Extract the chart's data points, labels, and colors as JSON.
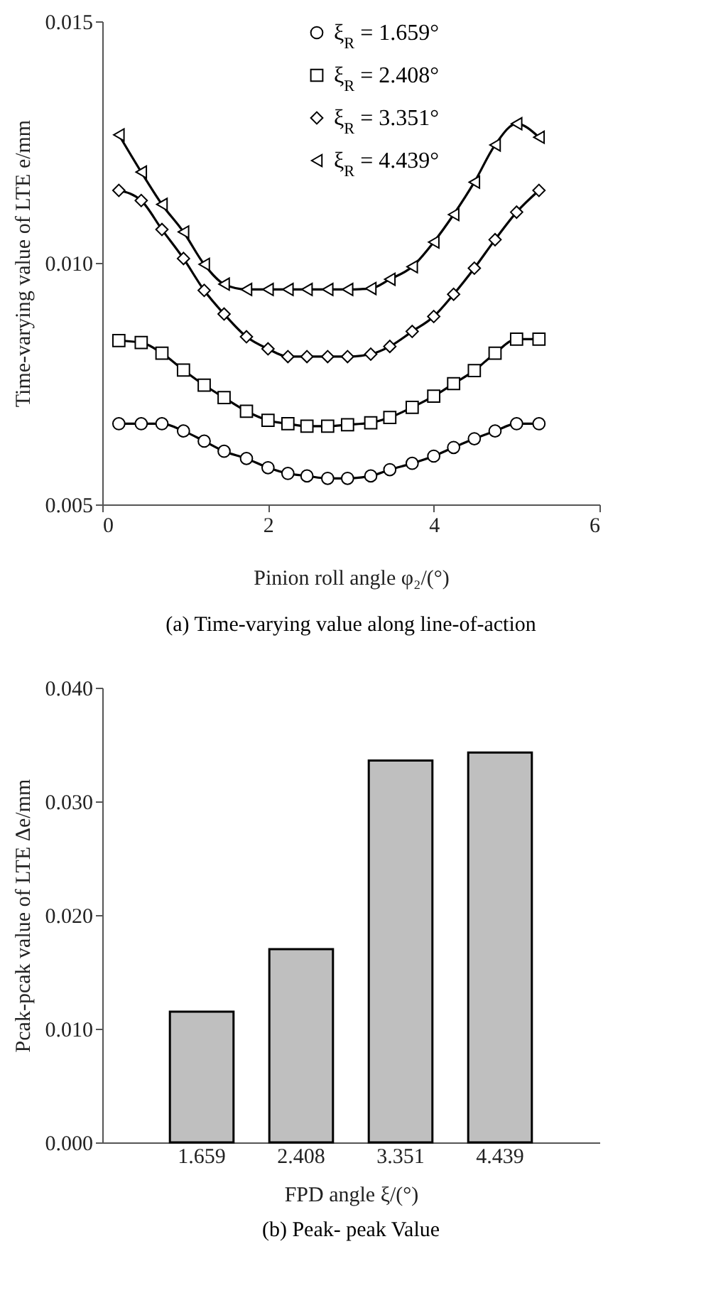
{
  "chart_data": [
    {
      "type": "line",
      "title": "(a) Time-varying value along line-of-action",
      "xlabel": "Pinion roll angle  φ₂/(°)",
      "ylabel": "Time-varying value of LTE  e/mm",
      "x": [
        0.2,
        0.47,
        0.72,
        0.98,
        1.23,
        1.47,
        1.74,
        2.0,
        2.24,
        2.47,
        2.72,
        2.96,
        3.24,
        3.47,
        3.74,
        4.0,
        4.24,
        4.49,
        4.74,
        5.0,
        5.27
      ],
      "xlim": [
        0,
        6
      ],
      "xticks": [
        0,
        2,
        4,
        6
      ],
      "ylim": [
        0.005,
        0.015
      ],
      "yticks": [
        0.015,
        {
          "value": 0.01,
          "label": "0.010"
        },
        0.005
      ],
      "legend": "top",
      "grid": false,
      "line_style": "solid",
      "series": [
        {
          "name": "ξ$_{R}$ = 1.659°",
          "color": "#000000",
          "marker": "circle",
          "values": [
            0.00667,
            0.00667,
            0.00667,
            0.00652,
            0.00631,
            0.0061,
            0.00595,
            0.00576,
            0.00564,
            0.00559,
            0.00554,
            0.00554,
            0.00559,
            0.00572,
            0.00585,
            0.006,
            0.00618,
            0.00636,
            0.00652,
            0.00667,
            0.00667
          ]
        },
        {
          "name": "ξ$_{R}$ = 2.408°",
          "color": "#000000",
          "marker": "square",
          "values": [
            0.00839,
            0.00835,
            0.00813,
            0.00778,
            0.00747,
            0.00721,
            0.00693,
            0.00674,
            0.00667,
            0.00662,
            0.00662,
            0.00665,
            0.00669,
            0.0068,
            0.00701,
            0.00724,
            0.0075,
            0.00777,
            0.00813,
            0.00842,
            0.00842
          ]
        },
        {
          "name": "ξ$_{R}$ = 3.351°",
          "color": "#000000",
          "marker": "diamond",
          "values": [
            0.0115,
            0.01129,
            0.01069,
            0.01009,
            0.00943,
            0.00894,
            0.00847,
            0.00822,
            0.00806,
            0.00806,
            0.00806,
            0.00806,
            0.00811,
            0.00827,
            0.00858,
            0.00889,
            0.00935,
            0.00989,
            0.01048,
            0.01105,
            0.0115
          ]
        },
        {
          "name": "ξ$_{R}$ = 4.439°",
          "color": "#000000",
          "marker": "triangle-left",
          "values": [
            0.01265,
            0.01188,
            0.01121,
            0.01064,
            0.00997,
            0.00956,
            0.00945,
            0.00945,
            0.00945,
            0.00945,
            0.00945,
            0.00945,
            0.00947,
            0.00966,
            0.00992,
            0.01043,
            0.011,
            0.01167,
            0.01244,
            0.01288,
            0.0126
          ]
        }
      ]
    },
    {
      "type": "bar",
      "title": "(b) Peak- peak Value",
      "xlabel": "FPD angle  ξ/(°)",
      "ylabel": "Pcak-pcak value of LTE  Δe/mm",
      "categories": [
        "1.659",
        "2.408",
        "3.351",
        "4.439"
      ],
      "values": [
        0.0115,
        0.017,
        0.0336,
        0.0343
      ],
      "color": "#bfbfbf",
      "ylim": [
        0,
        0.04
      ],
      "yticks": [
        {
          "value": 0,
          "label": "0.000"
        },
        {
          "value": 0.01,
          "label": "0.010"
        },
        {
          "value": 0.02,
          "label": "0.020"
        },
        {
          "value": 0.03,
          "label": "0.030"
        },
        {
          "value": 0.04,
          "label": "0.040"
        }
      ],
      "grid": false
    }
  ]
}
